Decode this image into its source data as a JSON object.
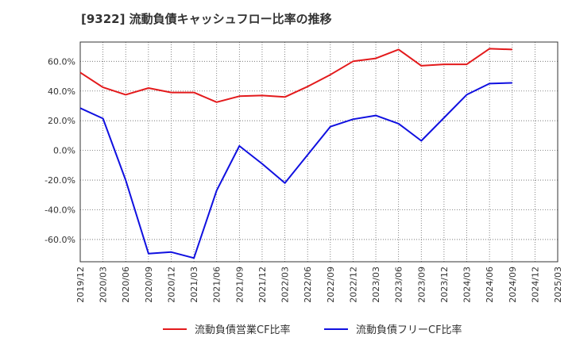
{
  "title": "[9322]  流動負債キャッシュフロー比率の推移",
  "chart_data": {
    "type": "line",
    "title": "[9322]  流動負債キャッシュフロー比率の推移",
    "xlabel": "",
    "ylabel": "",
    "x_ticks": [
      "2019/12",
      "2020/03",
      "2020/06",
      "2020/09",
      "2020/12",
      "2021/03",
      "2021/06",
      "2021/09",
      "2021/12",
      "2022/03",
      "2022/06",
      "2022/09",
      "2022/12",
      "2023/03",
      "2023/06",
      "2023/09",
      "2023/12",
      "2024/03",
      "2024/06",
      "2024/09",
      "2024/12",
      "2025/03"
    ],
    "y_ticks": [
      {
        "value": 60,
        "label": "60.0%"
      },
      {
        "value": 40,
        "label": "40.0%"
      },
      {
        "value": 20,
        "label": "20.0%"
      },
      {
        "value": 0,
        "label": "0.0%"
      },
      {
        "value": -20,
        "label": "-20.0%"
      },
      {
        "value": -40,
        "label": "-40.0%"
      },
      {
        "value": -60,
        "label": "-60.0%"
      }
    ],
    "ylim": [
      -75,
      73
    ],
    "grid": true,
    "legend_position": "bottom",
    "series": [
      {
        "name": "流動負債営業CF比率",
        "color": "#e31a1c",
        "values": [
          52.5,
          42.5,
          37.5,
          42.0,
          39.0,
          39.0,
          32.5,
          36.5,
          37.0,
          36.0,
          43.0,
          51.0,
          60.0,
          62.0,
          68.0,
          57.0,
          58.0,
          58.0,
          68.5,
          68.0,
          null,
          null
        ]
      },
      {
        "name": "流動負債フリーCF比率",
        "color": "#1010e0",
        "values": [
          28.5,
          21.5,
          -20.0,
          -69.5,
          -68.5,
          -72.5,
          -27.0,
          3.0,
          -9.0,
          -22.0,
          -3.0,
          16.0,
          21.0,
          23.5,
          18.0,
          6.5,
          22.0,
          37.5,
          45.0,
          45.5,
          null,
          null
        ]
      }
    ]
  }
}
